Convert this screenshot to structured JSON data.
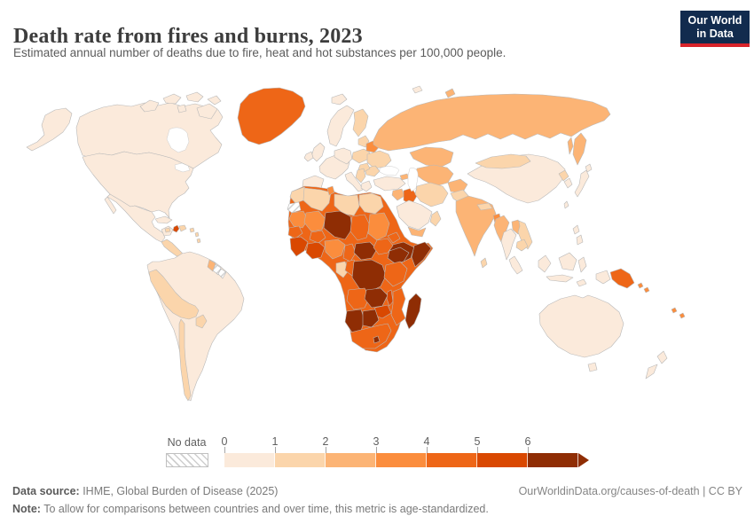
{
  "header": {
    "title": "Death rate from fires and burns, 2023",
    "subtitle": "Estimated annual number of deaths due to fire, heat and hot substances per 100,000 people.",
    "logo": {
      "line1": "Our World",
      "line2": "in Data",
      "bg_color": "#122b4e",
      "accent_color": "#d8232a"
    }
  },
  "legend": {
    "no_data_label": "No data",
    "ticks": [
      "0",
      "1",
      "2",
      "3",
      "4",
      "5",
      "6"
    ],
    "colors": [
      "#fbeadb",
      "#fbd5ab",
      "#fcb475",
      "#fb8d3d",
      "#ee6617",
      "#d94801",
      "#8f2d04"
    ]
  },
  "footer": {
    "source_label": "Data source:",
    "source_text": " IHME, Global Burden of Disease (2025)",
    "credit": "OurWorldinData.org/causes-of-death | CC BY",
    "note_label": "Note:",
    "note_text": " To allow for comparisons between countries and over time, this metric is age-standardized."
  },
  "chart_data": {
    "type": "choropleth-map",
    "title": "Death rate from fires and burns, 2023",
    "unit": "deaths per 100,000 people (age-standardized)",
    "bin_edges": [
      0,
      1,
      2,
      3,
      4,
      5,
      6
    ],
    "bin_labels": [
      "0–1",
      "1–2",
      "2–3",
      "3–4",
      "4–5",
      "5–6",
      "≥6"
    ],
    "no_data_value": null,
    "regions": [
      {
        "id": "usa",
        "name": "United States",
        "bin": 0
      },
      {
        "id": "canada",
        "name": "Canada",
        "bin": 0
      },
      {
        "id": "greenland",
        "name": "Greenland",
        "bin": 4
      },
      {
        "id": "mexico",
        "name": "Mexico",
        "bin": 0
      },
      {
        "id": "central-america",
        "name": "Central America (Guatemala–Panama)",
        "bin": 1
      },
      {
        "id": "cuba",
        "name": "Cuba",
        "bin": 0
      },
      {
        "id": "jamaica",
        "name": "Jamaica",
        "bin": 1
      },
      {
        "id": "haiti",
        "name": "Haiti",
        "bin": 5
      },
      {
        "id": "dominican-republic",
        "name": "Dominican Republic",
        "bin": 1
      },
      {
        "id": "caribbean",
        "name": "Lesser Antilles",
        "bin": 1
      },
      {
        "id": "south-america",
        "name": "Brazil, Argentina, Colombia & Venezuela",
        "bin": 0
      },
      {
        "id": "peru-bolivia",
        "name": "Peru & Bolivia",
        "bin": 1
      },
      {
        "id": "chile",
        "name": "Chile",
        "bin": 1
      },
      {
        "id": "paraguay",
        "name": "Paraguay",
        "bin": 1
      },
      {
        "id": "guyana",
        "name": "Guyana",
        "bin": 2
      },
      {
        "id": "suriname",
        "name": "Suriname",
        "bin": null
      },
      {
        "id": "french-guiana",
        "name": "French Guiana",
        "bin": null
      },
      {
        "id": "iceland",
        "name": "Iceland",
        "bin": 0
      },
      {
        "id": "norway-sweden",
        "name": "Norway & Sweden",
        "bin": 0
      },
      {
        "id": "denmark",
        "name": "Denmark",
        "bin": 0
      },
      {
        "id": "finland",
        "name": "Finland",
        "bin": 1
      },
      {
        "id": "uk",
        "name": "United Kingdom",
        "bin": 0
      },
      {
        "id": "ireland",
        "name": "Ireland",
        "bin": 0
      },
      {
        "id": "france",
        "name": "France",
        "bin": 0
      },
      {
        "id": "germany",
        "name": "Germany & Central Europe",
        "bin": 0
      },
      {
        "id": "iberia",
        "name": "Spain & Portugal",
        "bin": 0
      },
      {
        "id": "italy",
        "name": "Italy",
        "bin": 0
      },
      {
        "id": "poland",
        "name": "Poland",
        "bin": 1
      },
      {
        "id": "baltics",
        "name": "Baltic states",
        "bin": 1
      },
      {
        "id": "belarus",
        "name": "Belarus",
        "bin": 3
      },
      {
        "id": "ukraine",
        "name": "Ukraine",
        "bin": 1
      },
      {
        "id": "romania",
        "name": "Romania",
        "bin": 1
      },
      {
        "id": "hungary",
        "name": "Hungary",
        "bin": 1
      },
      {
        "id": "balkans",
        "name": "Western Balkans",
        "bin": 1
      },
      {
        "id": "greece",
        "name": "Greece",
        "bin": 0
      },
      {
        "id": "russia",
        "name": "Russia",
        "bin": 2
      },
      {
        "id": "kazakhstan",
        "name": "Kazakhstan",
        "bin": 2
      },
      {
        "id": "central-asia",
        "name": "Uzbekistan & Turkmenistan",
        "bin": 2
      },
      {
        "id": "georgia",
        "name": "Georgia",
        "bin": 2
      },
      {
        "id": "azerbaijan",
        "name": "Azerbaijan",
        "bin": 4
      },
      {
        "id": "turkey",
        "name": "Turkey",
        "bin": 0
      },
      {
        "id": "syria",
        "name": "Syria",
        "bin": 2
      },
      {
        "id": "iraq",
        "name": "Iraq",
        "bin": 4
      },
      {
        "id": "iran",
        "name": "Iran",
        "bin": 1
      },
      {
        "id": "saudi-arabia",
        "name": "Saudi Arabia",
        "bin": 0
      },
      {
        "id": "yemen",
        "name": "Yemen",
        "bin": 2
      },
      {
        "id": "oman",
        "name": "Oman",
        "bin": 1
      },
      {
        "id": "afghanistan",
        "name": "Afghanistan",
        "bin": 2
      },
      {
        "id": "pakistan",
        "name": "Pakistan",
        "bin": 1
      },
      {
        "id": "india",
        "name": "India",
        "bin": 2
      },
      {
        "id": "nepal",
        "name": "Nepal",
        "bin": 1
      },
      {
        "id": "bangladesh",
        "name": "Bangladesh",
        "bin": 3
      },
      {
        "id": "sri-lanka",
        "name": "Sri Lanka",
        "bin": 1
      },
      {
        "id": "myanmar",
        "name": "Myanmar",
        "bin": 2
      },
      {
        "id": "thailand",
        "name": "Thailand",
        "bin": 0
      },
      {
        "id": "laos",
        "name": "Laos",
        "bin": 2
      },
      {
        "id": "vietnam",
        "name": "Vietnam",
        "bin": 1
      },
      {
        "id": "cambodia",
        "name": "Cambodia",
        "bin": 1
      },
      {
        "id": "malaysia",
        "name": "Malaysia",
        "bin": 0
      },
      {
        "id": "china",
        "name": "China",
        "bin": 0
      },
      {
        "id": "mongolia",
        "name": "Mongolia",
        "bin": 1
      },
      {
        "id": "north-korea",
        "name": "North Korea",
        "bin": 1
      },
      {
        "id": "south-korea",
        "name": "South Korea",
        "bin": 0
      },
      {
        "id": "japan",
        "name": "Japan",
        "bin": 0
      },
      {
        "id": "taiwan",
        "name": "Taiwan",
        "bin": 0
      },
      {
        "id": "philippines",
        "name": "Philippines",
        "bin": 0
      },
      {
        "id": "indonesia",
        "name": "Indonesia",
        "bin": 0
      },
      {
        "id": "papua-new-guinea",
        "name": "Papua New Guinea",
        "bin": 4
      },
      {
        "id": "solomon-islands",
        "name": "Solomon Islands",
        "bin": 3
      },
      {
        "id": "fiji",
        "name": "Vanuatu & Fiji",
        "bin": 3
      },
      {
        "id": "australia",
        "name": "Australia",
        "bin": 0
      },
      {
        "id": "new-zealand",
        "name": "New Zealand",
        "bin": 0
      },
      {
        "id": "africa-coast",
        "name": "Africa (coastal baseline)",
        "bin": 4
      },
      {
        "id": "morocco",
        "name": "Morocco",
        "bin": 1
      },
      {
        "id": "western-sahara",
        "name": "Western Sahara",
        "bin": null
      },
      {
        "id": "algeria",
        "name": "Algeria",
        "bin": 1
      },
      {
        "id": "tunisia",
        "name": "Tunisia",
        "bin": 3
      },
      {
        "id": "libya",
        "name": "Libya",
        "bin": 1
      },
      {
        "id": "egypt",
        "name": "Egypt",
        "bin": 1
      },
      {
        "id": "mauritania",
        "name": "Mauritania",
        "bin": 3
      },
      {
        "id": "mali",
        "name": "Mali",
        "bin": 3
      },
      {
        "id": "senegal",
        "name": "Senegal & Gambia",
        "bin": 4
      },
      {
        "id": "guinea",
        "name": "Guinea, Sierra Leone & Liberia",
        "bin": 5
      },
      {
        "id": "cote-divoire",
        "name": "Côte d'Ivoire & Ghana",
        "bin": 5
      },
      {
        "id": "burkina-faso",
        "name": "Burkina Faso",
        "bin": 4
      },
      {
        "id": "niger",
        "name": "Niger",
        "bin": 6
      },
      {
        "id": "chad",
        "name": "Chad",
        "bin": 4
      },
      {
        "id": "sudan",
        "name": "Sudan",
        "bin": 3
      },
      {
        "id": "eritrea",
        "name": "Eritrea",
        "bin": 4
      },
      {
        "id": "ethiopia",
        "name": "Ethiopia",
        "bin": 6
      },
      {
        "id": "somalia",
        "name": "Somalia",
        "bin": 6
      },
      {
        "id": "nigeria",
        "name": "Nigeria",
        "bin": 3
      },
      {
        "id": "cameroon",
        "name": "Cameroon",
        "bin": 4
      },
      {
        "id": "central-african-republic",
        "name": "Central African Republic",
        "bin": 6
      },
      {
        "id": "south-sudan",
        "name": "South Sudan",
        "bin": 4
      },
      {
        "id": "uganda-kenya",
        "name": "Uganda & Kenya",
        "bin": 6
      },
      {
        "id": "gabon",
        "name": "Gabon",
        "bin": 1
      },
      {
        "id": "congo",
        "name": "Republic of the Congo",
        "bin": 4
      },
      {
        "id": "drc",
        "name": "Democratic Republic of Congo",
        "bin": 6
      },
      {
        "id": "tanzania",
        "name": "Tanzania",
        "bin": 4
      },
      {
        "id": "angola",
        "name": "Angola",
        "bin": 4
      },
      {
        "id": "zambia",
        "name": "Zambia",
        "bin": 6
      },
      {
        "id": "malawi",
        "name": "Malawi",
        "bin": 5
      },
      {
        "id": "mozambique",
        "name": "Mozambique",
        "bin": 4
      },
      {
        "id": "zimbabwe",
        "name": "Zimbabwe",
        "bin": 5
      },
      {
        "id": "namibia",
        "name": "Namibia",
        "bin": 6
      },
      {
        "id": "botswana",
        "name": "Botswana",
        "bin": 6
      },
      {
        "id": "south-africa",
        "name": "South Africa",
        "bin": 4
      },
      {
        "id": "lesotho",
        "name": "Lesotho",
        "bin": 6
      },
      {
        "id": "madagascar",
        "name": "Madagascar",
        "bin": 6
      }
    ]
  }
}
